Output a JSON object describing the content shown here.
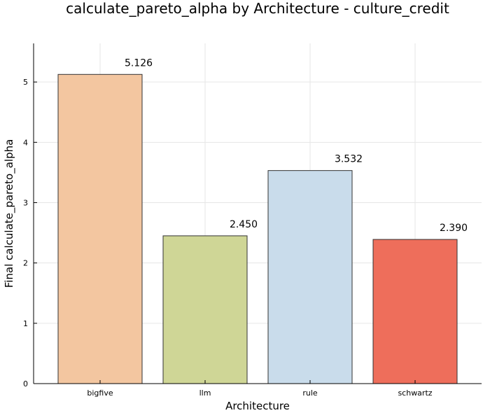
{
  "chart_data": {
    "type": "bar",
    "title": "calculate_pareto_alpha by Architecture - culture_credit",
    "xlabel": "Architecture",
    "ylabel": "Final calculate_pareto_alpha",
    "categories": [
      "bigfive",
      "llm",
      "rule",
      "schwartz"
    ],
    "values": [
      5.126,
      2.45,
      3.532,
      2.39
    ],
    "data_labels": [
      "5.126",
      "2.450",
      "3.532",
      "2.390"
    ],
    "bar_colors": [
      "#F3C6A0",
      "#CFD696",
      "#C9DCEB",
      "#EE6E5B"
    ],
    "yticks": [
      0,
      1,
      2,
      3,
      4,
      5
    ],
    "ylim": [
      0,
      5.64
    ],
    "grid": true,
    "legend": "none"
  }
}
